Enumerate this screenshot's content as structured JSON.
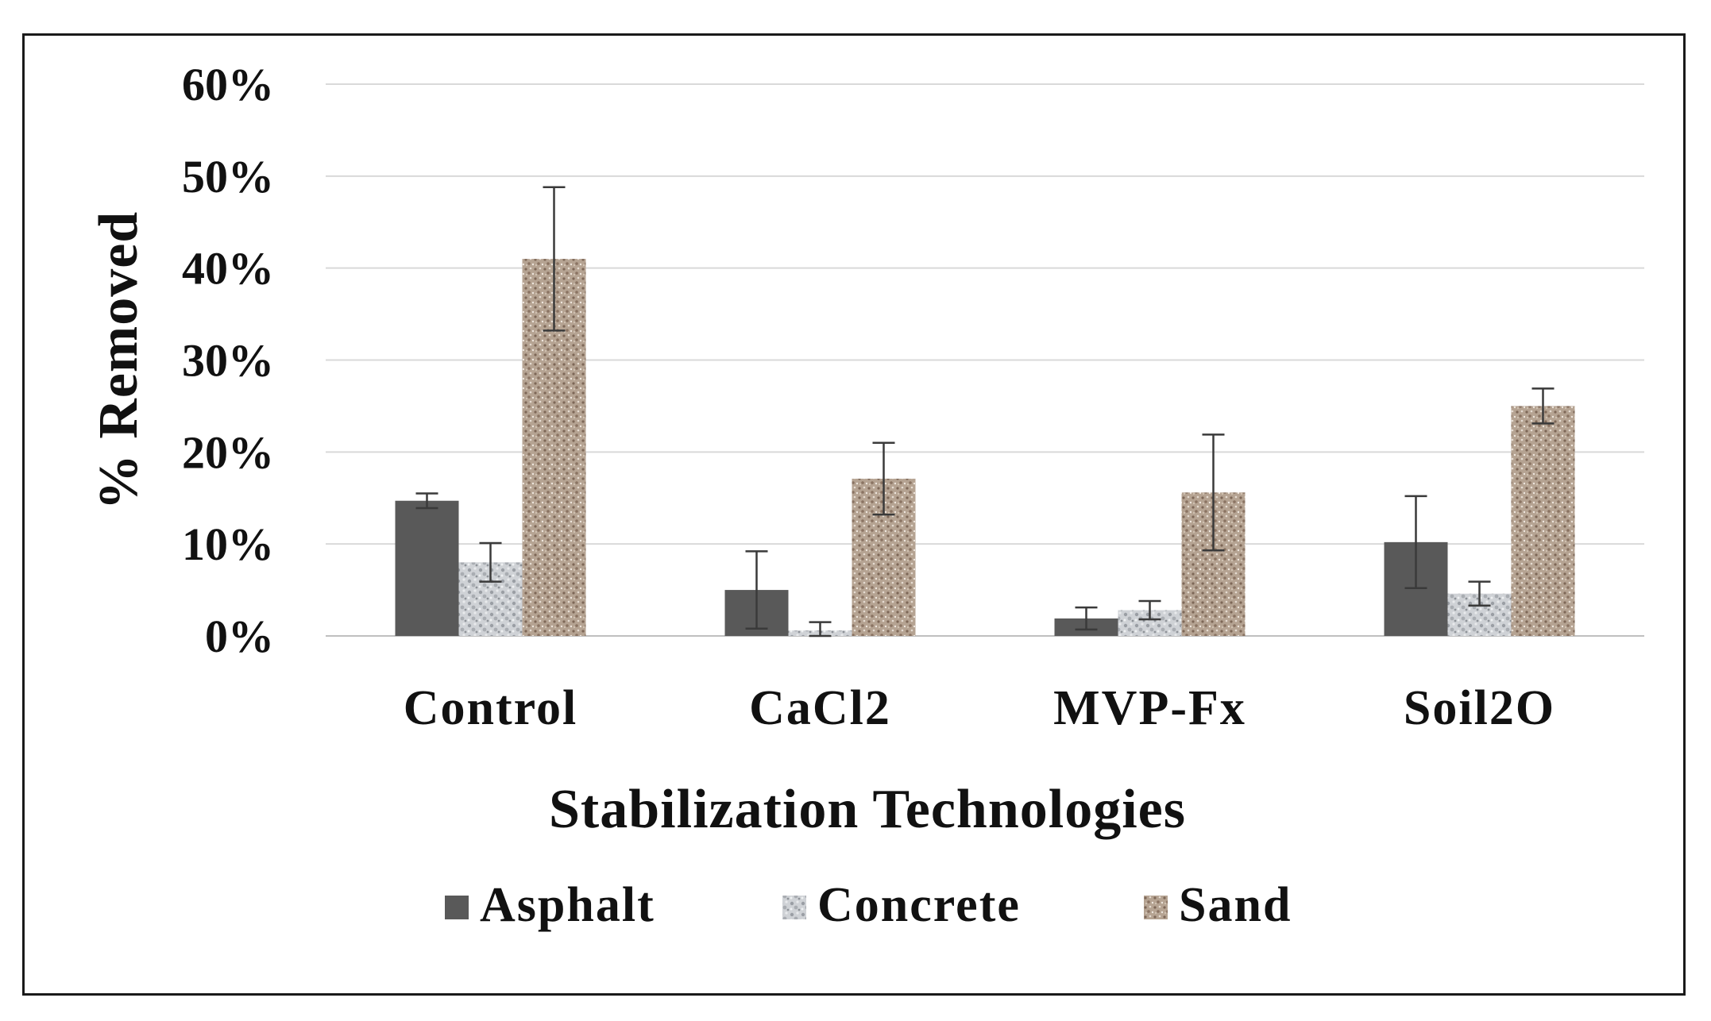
{
  "chart_data": {
    "type": "bar",
    "title": "",
    "xlabel": "Stabilization Technologies",
    "ylabel": "% Removed",
    "ylim": [
      0,
      60
    ],
    "yticks": [
      0,
      10,
      20,
      30,
      40,
      50,
      60
    ],
    "ytick_labels": [
      "0%",
      "10%",
      "20%",
      "30%",
      "40%",
      "50%",
      "60%"
    ],
    "grid": true,
    "legend_position": "bottom",
    "categories": [
      "Control",
      "CaCl2",
      "MVP-Fx",
      "Soil2O"
    ],
    "series": [
      {
        "name": "Asphalt",
        "values": [
          14.7,
          5.0,
          1.9,
          10.2
        ],
        "errors": [
          0.8,
          4.2,
          1.2,
          5.0
        ],
        "color": "#595959",
        "pattern": "solid"
      },
      {
        "name": "Concrete",
        "values": [
          8.0,
          0.6,
          2.8,
          4.6
        ],
        "errors": [
          2.1,
          0.9,
          1.0,
          1.3
        ],
        "color": "#c9ccd0",
        "pattern": "concrete"
      },
      {
        "name": "Sand",
        "values": [
          41.0,
          17.1,
          15.6,
          25.0
        ],
        "errors": [
          7.8,
          3.9,
          6.3,
          1.9
        ],
        "color": "#b09c8a",
        "pattern": "sand"
      }
    ]
  }
}
